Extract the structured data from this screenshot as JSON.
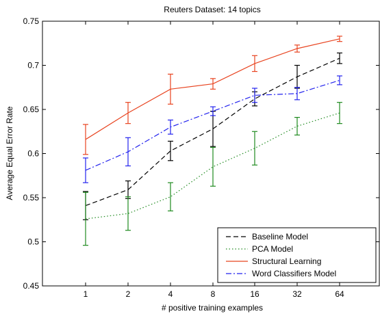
{
  "chart_data": {
    "type": "line",
    "title": "Reuters Dataset: 14 topics",
    "xlabel": "# positive training examples",
    "ylabel": "Average Equal Error Rate",
    "categories": [
      "1",
      "2",
      "4",
      "8",
      "16",
      "32",
      "64"
    ],
    "ylim": [
      0.45,
      0.75
    ],
    "yticks": [
      0.45,
      0.5,
      0.55,
      0.6,
      0.65,
      0.7,
      0.75
    ],
    "ytick_labels": [
      "0.45",
      "0.5",
      "0.55",
      "0.6",
      "0.65",
      "0.7",
      "0.75"
    ],
    "grid": false,
    "legend_position": "bottom-right",
    "series": [
      {
        "name": "Baseline Model",
        "color": "#000000",
        "dash": "dashed",
        "values": [
          0.541,
          0.559,
          0.603,
          0.628,
          0.662,
          0.687,
          0.708
        ],
        "err": [
          0.016,
          0.01,
          0.011,
          0.02,
          0.008,
          0.013,
          0.006
        ]
      },
      {
        "name": "PCA Model",
        "color": "#1f8a1f",
        "dash": "dotted",
        "values": [
          0.526,
          0.532,
          0.551,
          0.585,
          0.606,
          0.631,
          0.646
        ],
        "err": [
          0.03,
          0.019,
          0.016,
          0.022,
          0.019,
          0.01,
          0.012
        ]
      },
      {
        "name": "Structural Learning",
        "color": "#e8431f",
        "dash": "solid",
        "values": [
          0.616,
          0.646,
          0.673,
          0.679,
          0.702,
          0.719,
          0.73
        ],
        "err": [
          0.017,
          0.012,
          0.017,
          0.006,
          0.009,
          0.004,
          0.003
        ]
      },
      {
        "name": "Word Classifiers Model",
        "color": "#2222ee",
        "dash": "dashdot",
        "values": [
          0.581,
          0.602,
          0.63,
          0.648,
          0.666,
          0.668,
          0.683
        ],
        "err": [
          0.014,
          0.016,
          0.008,
          0.005,
          0.008,
          0.007,
          0.005
        ]
      }
    ]
  }
}
